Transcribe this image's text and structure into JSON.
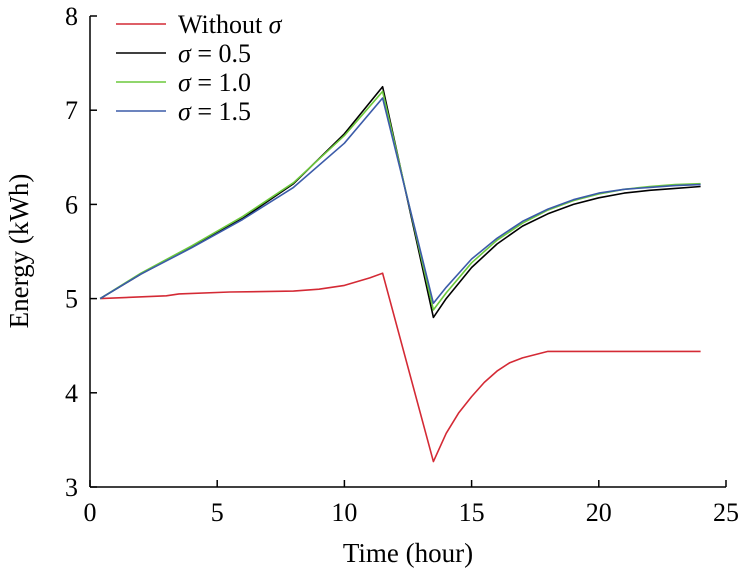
{
  "chart_data": {
    "type": "line",
    "xlabel": "Time (hour)",
    "ylabel": "Energy (kWh)",
    "xlim": [
      0,
      25
    ],
    "ylim": [
      3,
      8
    ],
    "xticks": [
      0,
      5,
      10,
      15,
      20,
      25
    ],
    "yticks": [
      3,
      4,
      5,
      6,
      7,
      8
    ],
    "grid": false,
    "legend_position": "top-left",
    "series": [
      {
        "name": "Without σ",
        "legend_prefix": "Without ",
        "legend_symbol": "σ",
        "legend_suffix": "",
        "color": "#d42a35",
        "x": [
          0.4,
          3,
          3.5,
          5.5,
          8,
          9,
          10,
          11,
          11.5,
          13.5,
          14,
          14.5,
          15,
          15.5,
          16,
          16.5,
          17,
          18,
          20,
          22,
          24
        ],
        "y": [
          5.0,
          5.03,
          5.05,
          5.07,
          5.08,
          5.1,
          5.14,
          5.22,
          5.27,
          3.27,
          3.57,
          3.79,
          3.96,
          4.11,
          4.23,
          4.32,
          4.37,
          4.44,
          4.44,
          4.44,
          4.44
        ]
      },
      {
        "name": "σ = 0.5",
        "legend_prefix": "",
        "legend_symbol": "σ",
        "legend_suffix": " = 0.5",
        "color": "#000000",
        "x": [
          0.4,
          2,
          4,
          6,
          8,
          10,
          11.5,
          13.5,
          14,
          15,
          16,
          17,
          18,
          19,
          20,
          21,
          22,
          23,
          24
        ],
        "y": [
          5.0,
          5.26,
          5.55,
          5.85,
          6.22,
          6.75,
          7.25,
          4.8,
          5.0,
          5.33,
          5.58,
          5.77,
          5.9,
          6.0,
          6.07,
          6.12,
          6.15,
          6.17,
          6.19
        ]
      },
      {
        "name": "σ = 1.0",
        "legend_prefix": "",
        "legend_symbol": "σ",
        "legend_suffix": " = 1.0",
        "color": "#6cc93c",
        "x": [
          0.4,
          2,
          4,
          6,
          8,
          10,
          11.5,
          13.5,
          14,
          15,
          16,
          17,
          18,
          19,
          20,
          21,
          22,
          23,
          24
        ],
        "y": [
          5.0,
          5.27,
          5.56,
          5.87,
          6.23,
          6.73,
          7.2,
          4.88,
          5.06,
          5.38,
          5.62,
          5.8,
          5.94,
          6.04,
          6.11,
          6.16,
          6.19,
          6.21,
          6.22
        ]
      },
      {
        "name": "σ = 1.5",
        "legend_prefix": "",
        "legend_symbol": "σ",
        "legend_suffix": " = 1.5",
        "color": "#3b5ba9",
        "x": [
          0.4,
          2,
          4,
          6,
          8,
          10,
          11.5,
          13.5,
          14,
          15,
          16,
          17,
          18,
          19,
          20,
          21,
          22,
          23,
          24
        ],
        "y": [
          5.0,
          5.26,
          5.54,
          5.84,
          6.18,
          6.65,
          7.13,
          4.95,
          5.12,
          5.42,
          5.64,
          5.82,
          5.95,
          6.05,
          6.12,
          6.16,
          6.18,
          6.2,
          6.21
        ]
      }
    ]
  }
}
